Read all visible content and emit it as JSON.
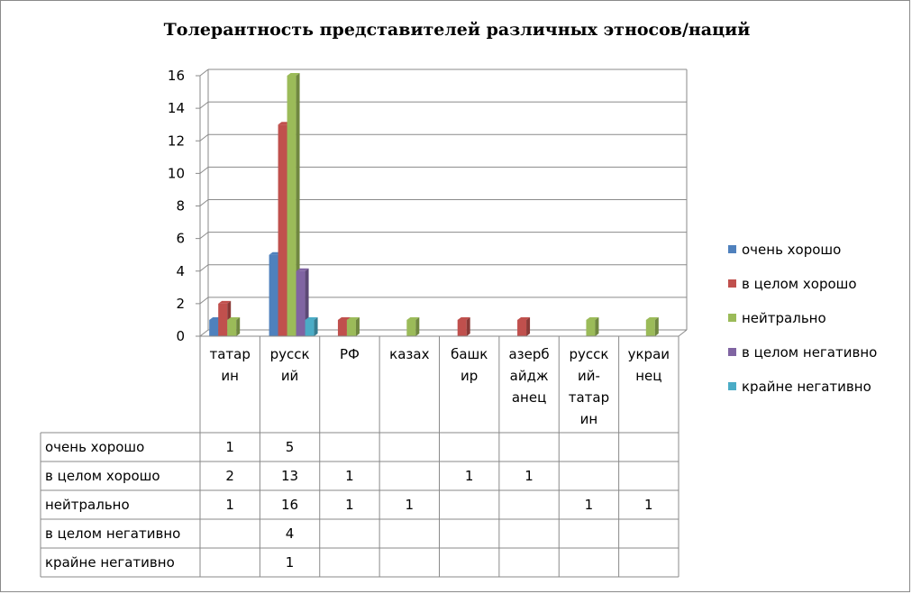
{
  "chart_data": {
    "type": "bar",
    "title": "Толерантность представителей различных этносов/наций",
    "categories": [
      [
        "татар",
        "ин"
      ],
      [
        "русск",
        "ий"
      ],
      [
        "РФ"
      ],
      [
        "казах"
      ],
      [
        "башк",
        "ир"
      ],
      [
        "азерб",
        "айдж",
        "анец"
      ],
      [
        "русск",
        "ий-",
        "татар",
        "ин"
      ],
      [
        "украи",
        "нец"
      ]
    ],
    "series": [
      {
        "name": "очень хорошо",
        "color": "#4f81bd",
        "values": [
          1,
          5,
          null,
          null,
          null,
          null,
          null,
          null
        ]
      },
      {
        "name": "в целом хорошо",
        "color": "#c0504d",
        "values": [
          2,
          13,
          1,
          null,
          1,
          1,
          null,
          null
        ]
      },
      {
        "name": "нейтрально",
        "color": "#9bbb59",
        "values": [
          1,
          16,
          1,
          1,
          null,
          null,
          1,
          1
        ]
      },
      {
        "name": "в целом негативно",
        "color": "#8064a2",
        "values": [
          null,
          4,
          null,
          null,
          null,
          null,
          null,
          null
        ]
      },
      {
        "name": "крайне негативно",
        "color": "#4bacc6",
        "values": [
          null,
          1,
          null,
          null,
          null,
          null,
          null,
          null
        ]
      }
    ],
    "ylim": [
      0,
      16
    ],
    "yticks": [
      0,
      2,
      4,
      6,
      8,
      10,
      12,
      14,
      16
    ],
    "grid": true,
    "legend": "right",
    "data_table": true
  }
}
